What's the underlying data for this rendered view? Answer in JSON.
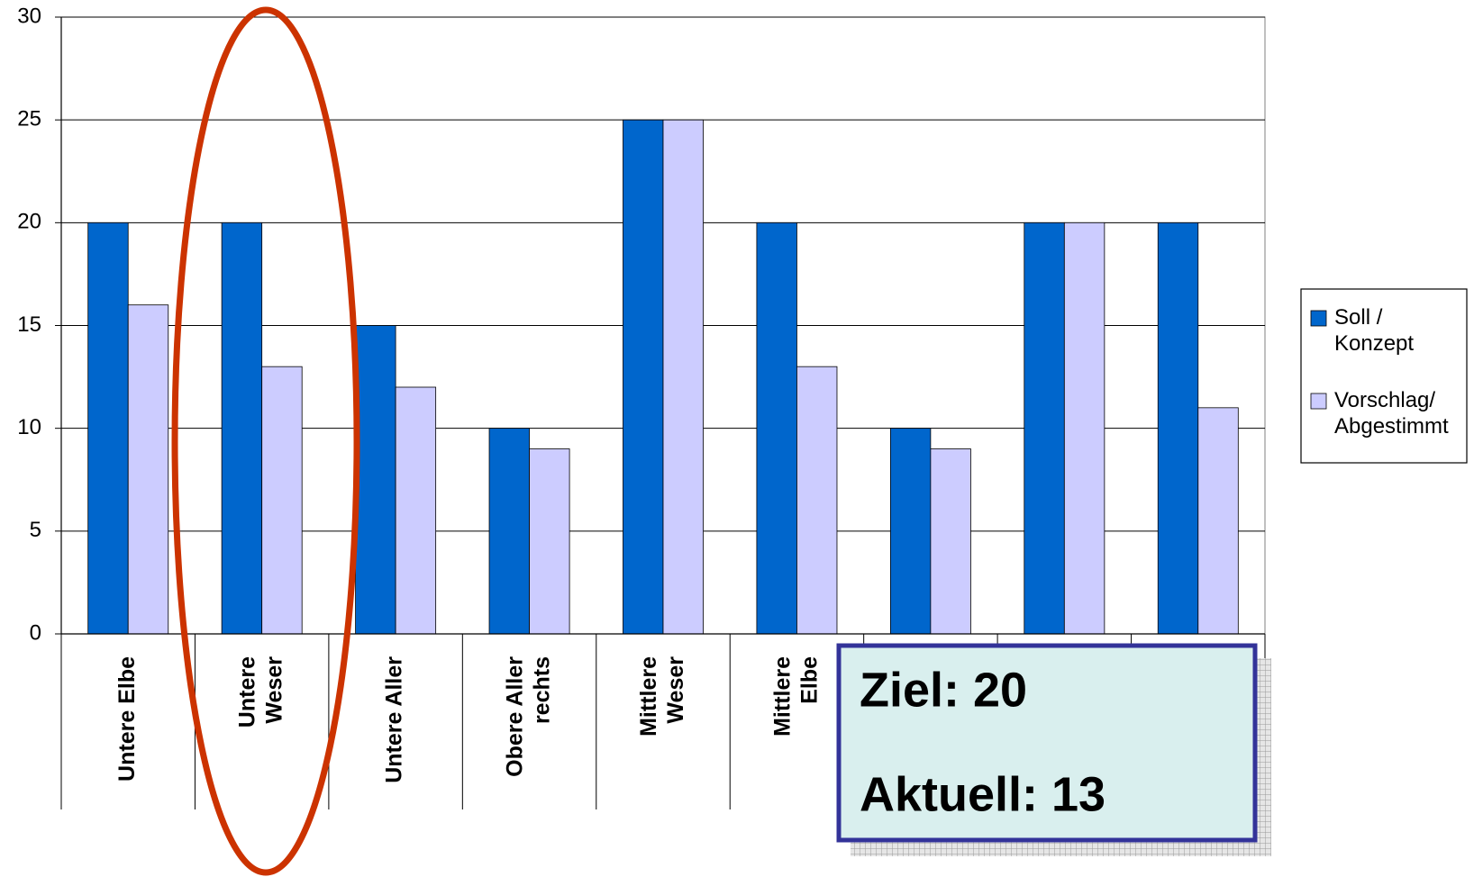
{
  "chart_data": {
    "type": "bar",
    "categories": [
      "Untere Elbe",
      "Untere\nWeser",
      "Untere Aller",
      "Obere Aller\nrechts",
      "Mittlere\nWeser",
      "Mittlere\nElbe",
      null,
      null,
      null
    ],
    "series": [
      {
        "name": "Soll /\nKonzept",
        "color": "#0066cc",
        "values": [
          20,
          20,
          15,
          10,
          25,
          20,
          10,
          20,
          20
        ]
      },
      {
        "name": "Vorschlag/\nAbgestimmt",
        "color": "#ccccff",
        "values": [
          16,
          13,
          12,
          9,
          25,
          13,
          9,
          20,
          11
        ]
      }
    ],
    "ylim": [
      0,
      30
    ],
    "yticks": [
      0,
      5,
      10,
      15,
      20,
      25,
      30
    ],
    "grid": true,
    "legend": "right",
    "annotations": [
      "Ziel: 20",
      "Aktuell: 13"
    ]
  }
}
